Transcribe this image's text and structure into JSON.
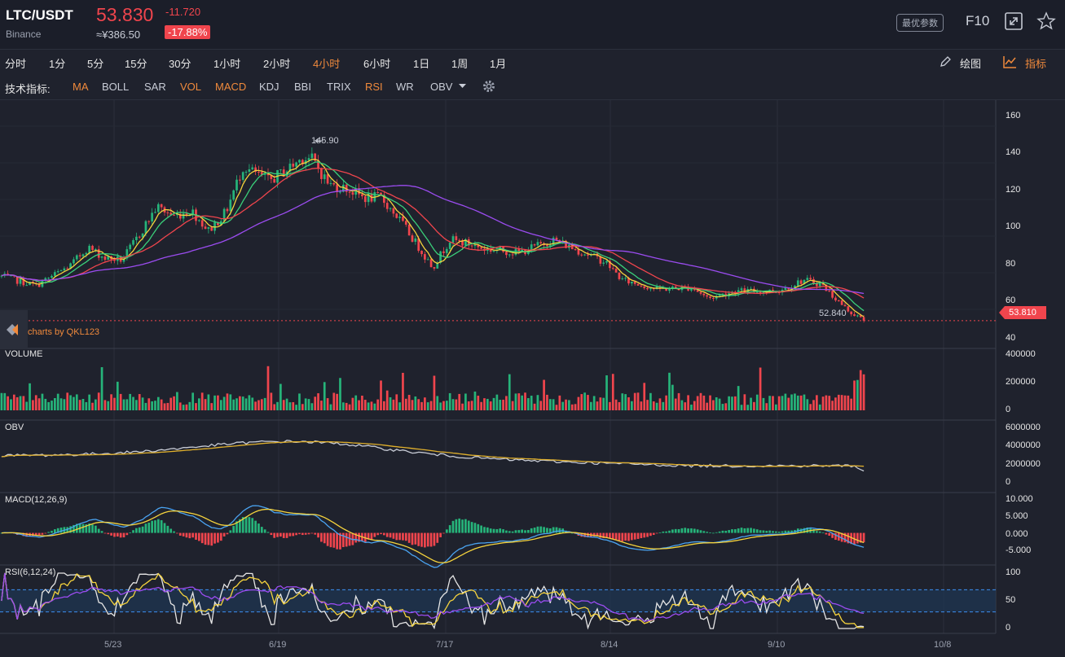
{
  "header": {
    "symbol": "LTC/USDT",
    "exchange": "Binance",
    "price": "53.830",
    "change": "-11.720",
    "cny": "≈¥386.50",
    "change_pct": "-17.88%",
    "optimal_params": "最优参数",
    "f10": "F10",
    "icons": [
      "fullscreen-icon",
      "star-icon"
    ]
  },
  "periods": [
    "分时",
    "1分",
    "5分",
    "15分",
    "30分",
    "1小时",
    "2小时",
    "4小时",
    "6小时",
    "1日",
    "1周",
    "1月"
  ],
  "active_period": "4小时",
  "toolbar_right": {
    "draw": "绘图",
    "indicators": "指标"
  },
  "indicators": {
    "label": "技术指标:",
    "items": [
      "MA",
      "BOLL",
      "SAR",
      "VOL",
      "MACD",
      "KDJ",
      "BBI",
      "TRIX",
      "RSI",
      "WR",
      "OBV"
    ],
    "active": [
      "MA",
      "VOL",
      "MACD",
      "RSI"
    ]
  },
  "panels": {
    "volume": "VOLUME",
    "obv": "OBV",
    "macd": "MACD(12,26,9)",
    "rsi": "RSI(6,12,24)"
  },
  "credit": "charts by QKL123",
  "annotations": {
    "high": "145.90",
    "low": "52.840",
    "last": "53.810"
  },
  "axes": {
    "price_ticks": [
      "160",
      "140",
      "120",
      "100",
      "80",
      "60",
      "40"
    ],
    "volume_ticks": [
      "400000",
      "200000",
      "0"
    ],
    "obv_ticks": [
      "6000000",
      "4000000",
      "2000000",
      "0"
    ],
    "macd_ticks": [
      "10.000",
      "5.000",
      "0.000",
      "-5.000"
    ],
    "rsi_ticks": [
      "100",
      "50",
      "0"
    ],
    "x_ticks": [
      "5/23",
      "6/19",
      "7/17",
      "8/14",
      "9/10",
      "10/8"
    ]
  },
  "colors": {
    "up": "#26b47a",
    "down": "#f0454d",
    "accent": "#f08a3c",
    "background": "#1f222d"
  },
  "chart_data": {
    "type": "candlestick",
    "x_ticks": [
      "5/23",
      "6/19",
      "7/17",
      "8/14",
      "9/10",
      "10/8"
    ],
    "price_range": [
      40,
      165
    ],
    "price_path": [
      [
        0,
        78
      ],
      [
        0.04,
        73
      ],
      [
        0.08,
        84
      ],
      [
        0.1,
        94
      ],
      [
        0.12,
        88
      ],
      [
        0.14,
        87
      ],
      [
        0.16,
        101
      ],
      [
        0.18,
        116
      ],
      [
        0.2,
        111
      ],
      [
        0.22,
        114
      ],
      [
        0.24,
        103
      ],
      [
        0.26,
        113
      ],
      [
        0.28,
        138
      ],
      [
        0.31,
        130
      ],
      [
        0.33,
        136
      ],
      [
        0.35,
        143
      ],
      [
        0.36,
        142
      ],
      [
        0.38,
        128
      ],
      [
        0.4,
        126
      ],
      [
        0.42,
        121
      ],
      [
        0.44,
        121
      ],
      [
        0.46,
        110
      ],
      [
        0.5,
        83
      ],
      [
        0.52,
        98
      ],
      [
        0.54,
        96
      ],
      [
        0.56,
        93
      ],
      [
        0.6,
        91
      ],
      [
        0.64,
        98
      ],
      [
        0.66,
        94
      ],
      [
        0.7,
        86
      ],
      [
        0.72,
        76
      ],
      [
        0.76,
        71
      ],
      [
        0.8,
        72
      ],
      [
        0.82,
        66
      ],
      [
        0.85,
        70
      ],
      [
        0.9,
        70
      ],
      [
        0.93,
        76
      ],
      [
        0.95,
        74
      ],
      [
        0.98,
        60
      ],
      [
        1.0,
        53.8
      ]
    ],
    "high": 145.9,
    "low": 52.84,
    "last": 53.81,
    "volume_range": [
      0,
      400000
    ],
    "obv_range": [
      0,
      6000000
    ],
    "macd_range": [
      -7.5,
      10
    ],
    "rsi_range": [
      0,
      100
    ],
    "rsi_band": [
      30,
      70
    ]
  }
}
